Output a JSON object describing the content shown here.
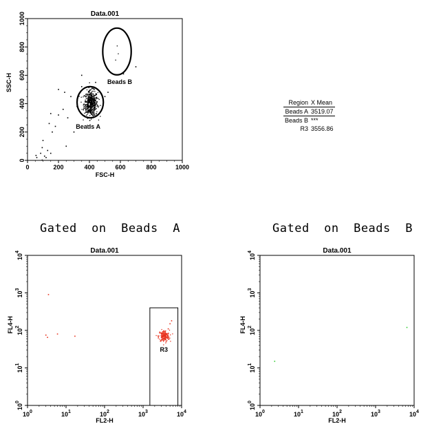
{
  "sections": {
    "gated_a": "Gated  on  Beads  A",
    "gated_b": "Gated  on  Beads  B"
  },
  "stats": {
    "header": [
      "Region",
      "X Mean"
    ],
    "rows": [
      {
        "region": "Beads A",
        "x_mean": "3519.07"
      },
      {
        "region": "Beads B",
        "x_mean": "***"
      },
      {
        "region": "R3",
        "x_mean": "3556.86"
      }
    ]
  },
  "colors": {
    "gated_a_points": "#e8321e",
    "gated_b_points": "#33cc33",
    "scatter_points": "#000000"
  },
  "chart_data": [
    {
      "type": "scatter",
      "title": "Data.001",
      "xlabel": "FSC-H",
      "ylabel": "SSC-H",
      "xlim": [
        0,
        1000
      ],
      "ylim": [
        0,
        1000
      ],
      "xticks": [
        "0",
        "200",
        "400",
        "600",
        "800",
        "1000"
      ],
      "yticks": [
        "0",
        "200",
        "400",
        "600",
        "800",
        "1000"
      ],
      "regions": [
        {
          "name": "Beads A",
          "shape": "ellipse",
          "center": [
            405,
            410
          ],
          "radius": [
            85,
            110
          ]
        },
        {
          "name": "Beads B",
          "shape": "ellipse",
          "center": [
            578,
            768
          ],
          "radius": [
            92,
            165
          ]
        }
      ],
      "clusters": [
        {
          "center": [
            410,
            400
          ],
          "spread": [
            22,
            45
          ],
          "count": 520
        },
        {
          "center": [
            575,
            780
          ],
          "spread": [
            10,
            18
          ],
          "count": 3
        }
      ],
      "points": [
        [
          85,
          50
        ],
        [
          95,
          90
        ],
        [
          100,
          140
        ],
        [
          110,
          30
        ],
        [
          120,
          20
        ],
        [
          60,
          20
        ],
        [
          55,
          35
        ],
        [
          150,
          50
        ],
        [
          130,
          70
        ],
        [
          160,
          200
        ],
        [
          180,
          240
        ],
        [
          140,
          260
        ],
        [
          200,
          320
        ],
        [
          230,
          360
        ],
        [
          260,
          300
        ],
        [
          250,
          100
        ],
        [
          300,
          200
        ],
        [
          320,
          380
        ],
        [
          200,
          500
        ],
        [
          240,
          480
        ],
        [
          150,
          330
        ],
        [
          280,
          450
        ],
        [
          350,
          520
        ],
        [
          500,
          450
        ],
        [
          520,
          480
        ],
        [
          620,
          610
        ],
        [
          700,
          660
        ],
        [
          350,
          600
        ],
        [
          440,
          550
        ],
        [
          95,
          2
        ]
      ]
    },
    {
      "type": "scatter",
      "title": "Data.001",
      "section_title": "Gated  on  Beads  A",
      "xlabel": "FL2-H",
      "ylabel": "FL4-H",
      "scale": "log",
      "xlim": [
        1,
        10000
      ],
      "ylim": [
        1,
        10000
      ],
      "xticks": [
        {
          "base": "10",
          "exp": "0"
        },
        {
          "base": "10",
          "exp": "1"
        },
        {
          "base": "10",
          "exp": "2"
        },
        {
          "base": "10",
          "exp": "3"
        },
        {
          "base": "10",
          "exp": "4"
        }
      ],
      "yticks": [
        {
          "base": "10",
          "exp": "0"
        },
        {
          "base": "10",
          "exp": "1"
        },
        {
          "base": "10",
          "exp": "2"
        },
        {
          "base": "10",
          "exp": "3"
        },
        {
          "base": "10",
          "exp": "4"
        }
      ],
      "regions": [
        {
          "name": "R3",
          "shape": "rectangle",
          "x": [
            1500,
            8000
          ],
          "y": [
            1,
            400
          ]
        }
      ],
      "clusters": [
        {
          "center": [
            3500,
            70
          ],
          "spread": [
            0.07,
            0.08
          ],
          "count": 180
        }
      ],
      "points": [
        [
          3,
          75
        ],
        [
          3.3,
          65
        ],
        [
          6,
          80
        ],
        [
          17,
          70
        ],
        [
          3.5,
          900
        ],
        [
          5000,
          150
        ],
        [
          5500,
          180
        ],
        [
          4500,
          110
        ]
      ]
    },
    {
      "type": "scatter",
      "title": "Data.001",
      "section_title": "Gated  on  Beads  B",
      "xlabel": "FL2-H",
      "ylabel": "FL4-H",
      "scale": "log",
      "xlim": [
        1,
        10000
      ],
      "ylim": [
        1,
        10000
      ],
      "xticks": [
        {
          "base": "10",
          "exp": "0"
        },
        {
          "base": "10",
          "exp": "1"
        },
        {
          "base": "10",
          "exp": "2"
        },
        {
          "base": "10",
          "exp": "3"
        },
        {
          "base": "10",
          "exp": "4"
        }
      ],
      "yticks": [
        {
          "base": "10",
          "exp": "0"
        },
        {
          "base": "10",
          "exp": "1"
        },
        {
          "base": "10",
          "exp": "2"
        },
        {
          "base": "10",
          "exp": "3"
        },
        {
          "base": "10",
          "exp": "4"
        }
      ],
      "regions": [],
      "clusters": [],
      "points": [
        [
          2.4,
          15
        ],
        [
          6500,
          120
        ]
      ]
    }
  ]
}
